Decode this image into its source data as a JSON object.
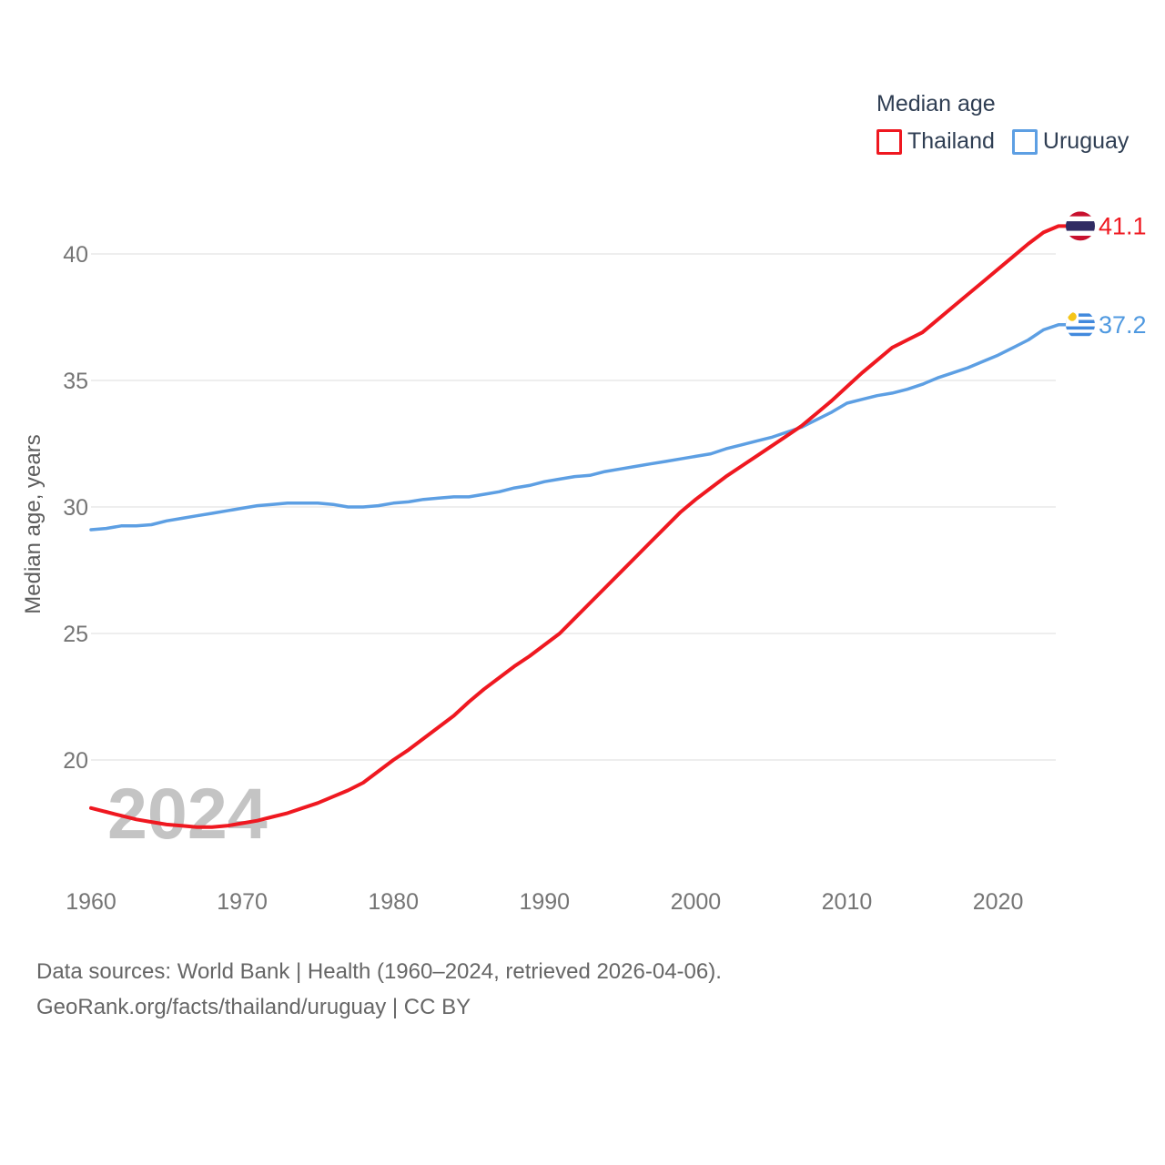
{
  "legend": {
    "title": "Median age",
    "items": [
      {
        "label": "Thailand",
        "color": "#ef1820"
      },
      {
        "label": "Uruguay",
        "color": "#5d9fe3"
      }
    ]
  },
  "y_axis": {
    "label": "Median age, years",
    "tick_values": [
      20,
      25,
      30,
      35,
      40
    ]
  },
  "x_axis": {
    "tick_values": [
      1960,
      1970,
      1980,
      1990,
      2000,
      2010,
      2020
    ]
  },
  "end_labels": [
    {
      "series": "Thailand",
      "value": "41.1",
      "color": "#ef1820",
      "flag": "thailand-flag"
    },
    {
      "series": "Uruguay",
      "value": "37.2",
      "color": "#4f99e0",
      "flag": "uruguay-flag"
    }
  ],
  "watermark": "2024",
  "footer": {
    "line1": "Data sources: World Bank | Health (1960–2024, retrieved 2026-04-06).",
    "line2": "GeoRank.org/facts/thailand/uruguay | CC BY"
  },
  "colors": {
    "thailand_line": "#ef1820",
    "uruguay_line": "#5d9fe3",
    "gridline": "#e8e8e8",
    "tick_text": "#757575",
    "axis_label_text": "#5c5c5c",
    "legend_text": "#2f3e53",
    "watermark_text": "#c4c4c4",
    "thai_flag_red": "#c8102e",
    "thai_flag_navy": "#302b63",
    "uruguay_flag_blue": "#4189dd",
    "uruguay_flag_sun": "#f5c518"
  },
  "chart_data": {
    "type": "line",
    "title": "Median age",
    "xlabel": "",
    "ylabel": "Median age, years",
    "x_start": 1960,
    "x_end": 2024,
    "xlim": [
      1960,
      2024
    ],
    "ylim": [
      16.5,
      42
    ],
    "y_gridlines": [
      20,
      25,
      30,
      35,
      40
    ],
    "x_ticks": [
      1960,
      1970,
      1980,
      1990,
      2000,
      2010,
      2020
    ],
    "grid": true,
    "legend_position": "top-right",
    "series": [
      {
        "name": "Thailand",
        "color": "#ef1820",
        "end_value": 41.1,
        "values": [
          18.1,
          17.95,
          17.8,
          17.65,
          17.55,
          17.45,
          17.4,
          17.35,
          17.35,
          17.4,
          17.5,
          17.6,
          17.75,
          17.9,
          18.1,
          18.3,
          18.55,
          18.8,
          19.1,
          19.55,
          20.0,
          20.4,
          20.85,
          21.3,
          21.75,
          22.3,
          22.8,
          23.25,
          23.7,
          24.1,
          24.55,
          25.0,
          25.6,
          26.2,
          26.8,
          27.4,
          28.0,
          28.6,
          29.2,
          29.8,
          30.3,
          30.75,
          31.2,
          31.6,
          32.0,
          32.4,
          32.8,
          33.2,
          33.7,
          34.2,
          34.75,
          35.3,
          35.8,
          36.3,
          36.6,
          36.9,
          37.4,
          37.9,
          38.4,
          38.9,
          39.4,
          39.9,
          40.4,
          40.85,
          41.1
        ]
      },
      {
        "name": "Uruguay",
        "color": "#5d9fe3",
        "end_value": 37.2,
        "values": [
          29.1,
          29.15,
          29.25,
          29.25,
          29.3,
          29.45,
          29.55,
          29.65,
          29.75,
          29.85,
          29.95,
          30.05,
          30.1,
          30.15,
          30.15,
          30.15,
          30.1,
          30.0,
          30.0,
          30.05,
          30.15,
          30.2,
          30.3,
          30.35,
          30.4,
          30.4,
          30.5,
          30.6,
          30.75,
          30.85,
          31.0,
          31.1,
          31.2,
          31.25,
          31.4,
          31.5,
          31.6,
          31.7,
          31.8,
          31.9,
          32.0,
          32.1,
          32.3,
          32.45,
          32.6,
          32.75,
          32.95,
          33.15,
          33.45,
          33.75,
          34.1,
          34.25,
          34.4,
          34.5,
          34.65,
          34.85,
          35.1,
          35.3,
          35.5,
          35.75,
          36.0,
          36.3,
          36.6,
          37.0,
          37.2
        ]
      }
    ]
  }
}
